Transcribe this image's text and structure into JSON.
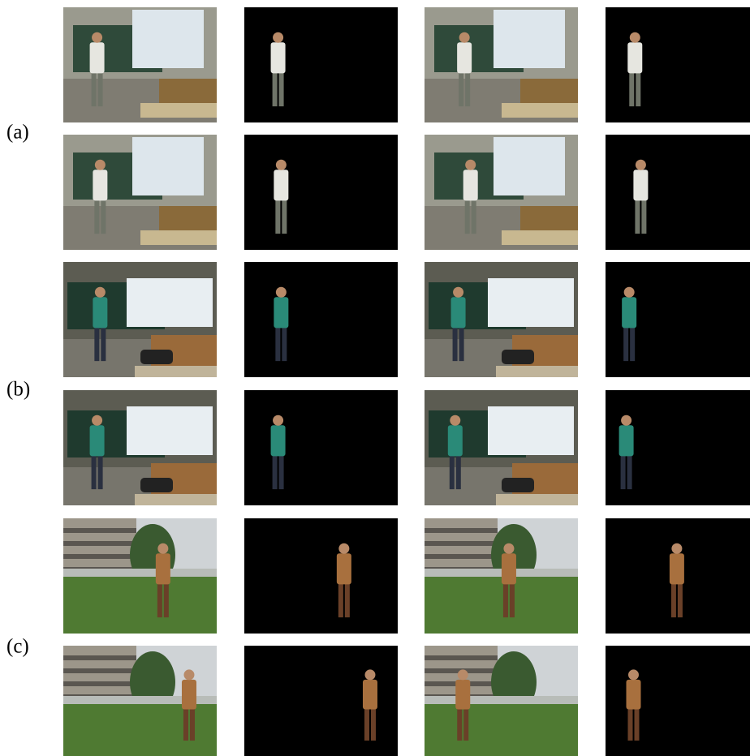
{
  "figure": {
    "labels": [
      "(a)",
      "(b)",
      "(c)"
    ]
  }
}
